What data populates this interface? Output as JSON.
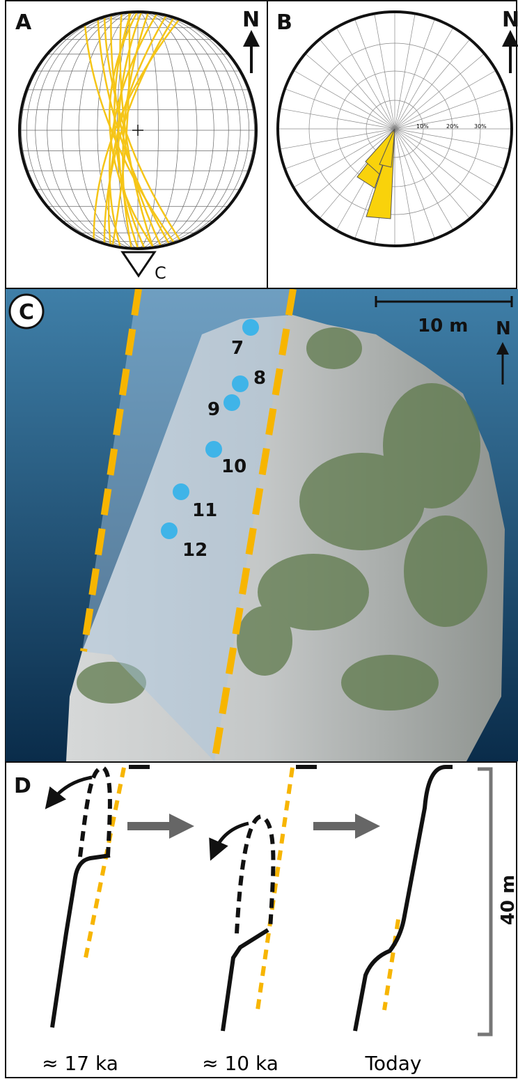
{
  "panel_a": {
    "label": "A",
    "north": "N",
    "viewpoint": "C"
  },
  "panel_b": {
    "label": "B",
    "north": "N",
    "rings": [
      "10%",
      "20%",
      "30%"
    ]
  },
  "panel_c": {
    "label": "C",
    "scale": "10 m",
    "north": "N",
    "points": [
      "7",
      "8",
      "9",
      "10",
      "11",
      "12"
    ]
  },
  "panel_d": {
    "label": "D",
    "height": "40 m",
    "stages": [
      "≈ 17 ka",
      "≈ 10 ka",
      "Today"
    ]
  }
}
